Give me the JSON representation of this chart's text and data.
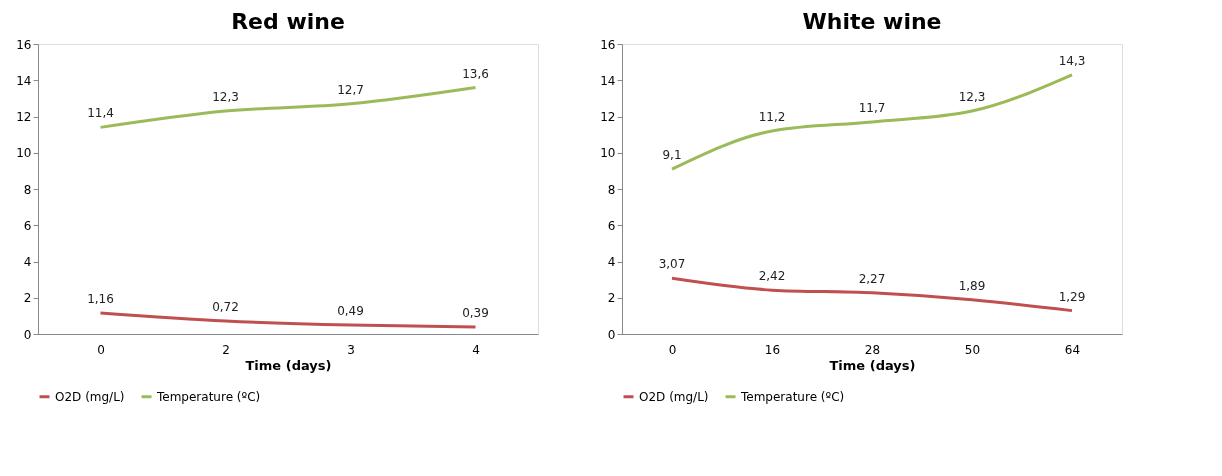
{
  "chart_data": [
    {
      "type": "line",
      "title": "Red wine",
      "xlabel": "Time (days)",
      "categories": [
        "0",
        "2",
        "3",
        "4"
      ],
      "ylim": [
        0,
        16
      ],
      "yticks": [
        0,
        2,
        4,
        6,
        8,
        10,
        12,
        14,
        16
      ],
      "grid": false,
      "legend": "bottom",
      "marker": "none",
      "series": [
        {
          "name": "O2D (mg/L)",
          "color": "#c0504d",
          "values": [
            1.16,
            0.72,
            0.49,
            0.39
          ],
          "value_labels": [
            "1,16",
            "0,72",
            "0,49",
            "0,39"
          ]
        },
        {
          "name": "Temperature (ºC)",
          "color": "#9bbb59",
          "values": [
            11.4,
            12.3,
            12.7,
            13.6
          ],
          "value_labels": [
            "11,4",
            "12,3",
            "12,7",
            "13,6"
          ]
        }
      ]
    },
    {
      "type": "line",
      "title": "White wine",
      "xlabel": "Time (days)",
      "categories": [
        "0",
        "16",
        "28",
        "50",
        "64"
      ],
      "ylim": [
        0,
        16
      ],
      "yticks": [
        0,
        2,
        4,
        6,
        8,
        10,
        12,
        14,
        16
      ],
      "grid": false,
      "legend": "bottom",
      "marker": "none",
      "series": [
        {
          "name": "O2D (mg/L)",
          "color": "#c0504d",
          "values": [
            3.07,
            2.42,
            2.27,
            1.89,
            1.29
          ],
          "value_labels": [
            "3,07",
            "2,42",
            "2,27",
            "1,89",
            "1,29"
          ]
        },
        {
          "name": "Temperature (ºC)",
          "color": "#9bbb59",
          "values": [
            9.1,
            11.2,
            11.7,
            12.3,
            14.3
          ],
          "value_labels": [
            "9,1",
            "11,2",
            "11,7",
            "12,3",
            "14,3"
          ]
        }
      ]
    }
  ]
}
